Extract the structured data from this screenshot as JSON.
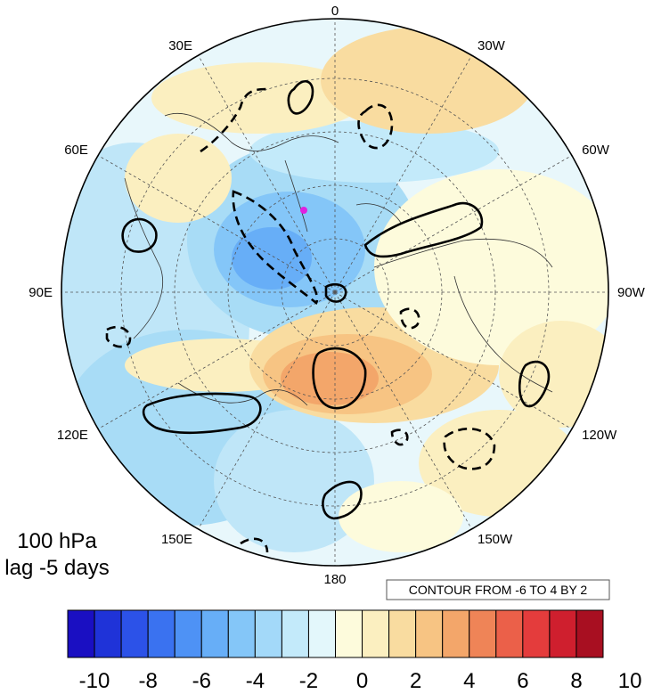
{
  "map": {
    "projection": "polar-stereographic",
    "hemisphere": "north",
    "lon_labels": [
      {
        "text": "0",
        "lon": 0
      },
      {
        "text": "30W",
        "lon": -30
      },
      {
        "text": "60W",
        "lon": -60
      },
      {
        "text": "90W",
        "lon": -90
      },
      {
        "text": "120W",
        "lon": -120
      },
      {
        "text": "150W",
        "lon": -150
      },
      {
        "text": "180",
        "lon": 180
      },
      {
        "text": "150E",
        "lon": 150
      },
      {
        "text": "120E",
        "lon": 120
      },
      {
        "text": "90E",
        "lon": 90
      },
      {
        "text": "60E",
        "lon": 60
      },
      {
        "text": "30E",
        "lon": 30
      }
    ],
    "marker_color": "#e020e0"
  },
  "panel": {
    "level": "100 hPa",
    "lag": "lag -5 days"
  },
  "contour_info": "CONTOUR FROM -6 TO 4 BY 2",
  "colorbar": {
    "colors": [
      "#1a0fc2",
      "#1f33d8",
      "#2c52e8",
      "#3a72f0",
      "#4e92f5",
      "#67aef7",
      "#84c6f8",
      "#a3d9f9",
      "#c3eafa",
      "#e3f7fb",
      "#fdfbdc",
      "#fbefc0",
      "#f9dca0",
      "#f7c483",
      "#f3a66a",
      "#ef8457",
      "#eb6049",
      "#e43c3c",
      "#cf1f2e",
      "#a80f21"
    ],
    "tick_labels": [
      "-10",
      "-8",
      "-6",
      "-4",
      "-2",
      "0",
      "2",
      "4",
      "6",
      "8",
      "10"
    ]
  }
}
